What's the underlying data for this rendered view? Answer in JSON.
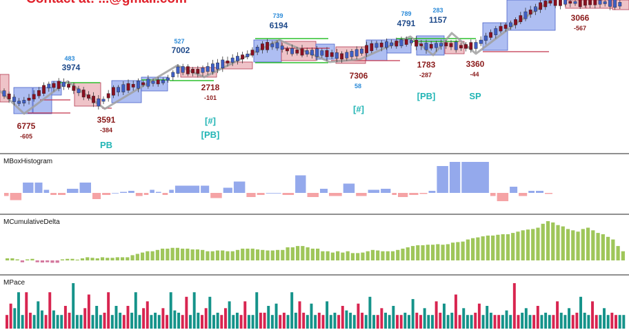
{
  "banner": {
    "text": "Contact at: ...@gmail.com"
  },
  "colors": {
    "up_box": "#aebef2",
    "up_box_edge": "#4a62c9",
    "down_box": "#efc3c8",
    "down_box_edge": "#b53a52",
    "bull_body": "#3f5fc4",
    "bear_body": "#8a1020",
    "zigzag": "#a0a0a0",
    "level_green": "#2bbf2b",
    "level_red": "#c2334a",
    "label_blue": "#1f4a8a",
    "label_small_blue": "#2a8ad8",
    "label_red": "#8a1a1a",
    "label_cyan": "#22b5b5",
    "hist_pos": "#94a9ec",
    "hist_neg": "#f5a3a5",
    "cd_pos": "#9fc65a",
    "cd_neg": "#d4789e",
    "pace_teal": "#15938a",
    "pace_red": "#d82550"
  },
  "panels": {
    "histogram_title": "MBoxHistogram",
    "cumdelta_title": "MCumulativeDelta",
    "pace_title": "MPace"
  },
  "chart_data": {
    "type": "candlestick-with-indicators",
    "swing_labels": [
      {
        "kind": "high",
        "volume": "3974",
        "delta": "483"
      },
      {
        "kind": "high",
        "volume": "7002",
        "delta": "527"
      },
      {
        "kind": "high",
        "volume": "6194",
        "delta": "739"
      },
      {
        "kind": "high",
        "volume": "4791",
        "delta": "789"
      },
      {
        "kind": "high",
        "volume": "1157",
        "delta": "283"
      },
      {
        "kind": "low",
        "volume": "6775",
        "delta": "-605"
      },
      {
        "kind": "low",
        "volume": "3591",
        "delta": "-384",
        "tag": "PB"
      },
      {
        "kind": "low",
        "volume": "2718",
        "delta": "-101",
        "tag": "[#]",
        "tag2": "[PB]"
      },
      {
        "kind": "low",
        "volume": "7306",
        "delta": "58",
        "tag": "[#]"
      },
      {
        "kind": "low",
        "volume": "1783",
        "delta": "-287",
        "tag": "[PB]"
      },
      {
        "kind": "low",
        "volume": "3360",
        "delta": "-44",
        "tag": "SP"
      },
      {
        "kind": "low",
        "volume": "3066",
        "delta": "-567"
      }
    ],
    "histogram": [
      -0.15,
      -0.35,
      0.5,
      0.5,
      0.15,
      -0.1,
      -0.1,
      0.2,
      0.5,
      -0.3,
      -0.1,
      0.0,
      0.05,
      0.1,
      -0.15,
      -0.1,
      0.15,
      0.05,
      -0.1,
      0.15,
      0.35,
      0.35,
      -0.25,
      0.25,
      0.55,
      -0.2,
      -0.1,
      0.0,
      -0.1,
      0.85,
      -0.2,
      0.2,
      -0.15,
      0.45,
      -0.15,
      0.15,
      0.2,
      -0.1,
      -0.2,
      -0.1,
      -0.05,
      0.1,
      1.3,
      1.5,
      1.5,
      -0.15,
      -0.4,
      0.3,
      -0.15,
      0.1,
      0.1,
      -0.05
    ],
    "cumulative_delta": [
      0.08,
      0.08,
      0.04,
      -0.07,
      0.04,
      0.06,
      -0.07,
      -0.08,
      -0.07,
      -0.09,
      -0.09,
      0.04,
      0.06,
      0.06,
      0.03,
      0.08,
      0.12,
      0.1,
      0.08,
      0.12,
      0.1,
      0.1,
      0.12,
      0.12,
      0.12,
      0.2,
      0.25,
      0.3,
      0.35,
      0.35,
      0.4,
      0.45,
      0.45,
      0.48,
      0.48,
      0.45,
      0.45,
      0.42,
      0.42,
      0.4,
      0.35,
      0.35,
      0.38,
      0.38,
      0.35,
      0.35,
      0.4,
      0.45,
      0.45,
      0.45,
      0.42,
      0.4,
      0.38,
      0.38,
      0.4,
      0.4,
      0.5,
      0.5,
      0.55,
      0.55,
      0.5,
      0.45,
      0.45,
      0.35,
      0.35,
      0.3,
      0.35,
      0.3,
      0.35,
      0.28,
      0.28,
      0.3,
      0.35,
      0.4,
      0.38,
      0.35,
      0.35,
      0.35,
      0.4,
      0.45,
      0.5,
      0.55,
      0.58,
      0.58,
      0.6,
      0.6,
      0.62,
      0.6,
      0.62,
      0.68,
      0.7,
      0.72,
      0.8,
      0.85,
      0.88,
      0.92,
      0.95,
      0.95,
      0.98,
      1.0,
      1.0,
      1.05,
      1.1,
      1.15,
      1.18,
      1.2,
      1.25,
      1.4,
      1.5,
      1.45,
      1.35,
      1.3,
      1.2,
      1.15,
      1.1,
      1.2,
      1.25,
      1.15,
      1.05,
      1.0,
      0.9,
      0.8,
      0.55,
      0.35
    ],
    "pace": [
      0.3,
      0.55,
      0.45,
      0.8,
      0.3,
      0.8,
      0.35,
      0.3,
      0.6,
      0.4,
      0.3,
      0.8,
      0.4,
      0.3,
      0.3,
      0.5,
      0.35,
      1.0,
      0.3,
      0.3,
      0.45,
      0.75,
      0.3,
      0.5,
      0.3,
      0.35,
      0.8,
      0.3,
      0.5,
      0.35,
      0.3,
      0.5,
      0.35,
      0.8,
      0.3,
      0.45,
      0.6,
      0.3,
      0.35,
      0.3,
      0.45,
      0.3,
      0.8,
      0.4,
      0.35,
      0.3,
      0.7,
      0.3,
      0.8,
      0.35,
      0.3,
      0.45,
      0.7,
      0.3,
      0.35,
      0.3,
      0.45,
      0.6,
      0.3,
      0.35,
      0.3,
      0.6,
      0.3,
      0.3,
      0.8,
      0.35,
      0.35,
      0.5,
      0.3,
      0.55,
      0.3,
      0.35,
      0.3,
      0.8,
      0.35,
      0.6,
      0.35,
      0.3,
      0.55,
      0.3,
      0.35,
      0.3,
      0.6,
      0.3,
      0.35,
      0.3,
      0.5,
      0.4,
      0.35,
      0.3,
      0.55,
      0.35,
      0.3,
      0.7,
      0.3,
      0.3,
      0.45,
      0.35,
      0.3,
      0.5,
      0.3,
      0.3,
      0.35,
      0.3,
      0.65,
      0.35,
      0.3,
      0.45,
      0.3,
      0.3,
      0.6,
      0.35,
      0.55,
      0.3,
      0.35,
      0.75,
      0.3,
      0.45,
      0.3,
      0.3,
      0.35,
      0.55,
      0.3,
      0.5,
      0.35,
      0.3,
      0.3,
      0.3,
      0.4,
      0.3,
      1.0,
      0.3,
      0.35,
      0.45,
      0.3,
      0.3,
      0.5,
      0.3,
      0.35,
      0.3,
      0.3,
      0.6,
      0.35,
      0.3,
      0.45,
      0.3,
      0.35,
      0.7,
      0.35,
      0.3,
      0.6,
      0.3,
      0.3,
      0.45,
      0.3,
      0.35,
      0.3,
      0.3,
      0.3
    ]
  }
}
